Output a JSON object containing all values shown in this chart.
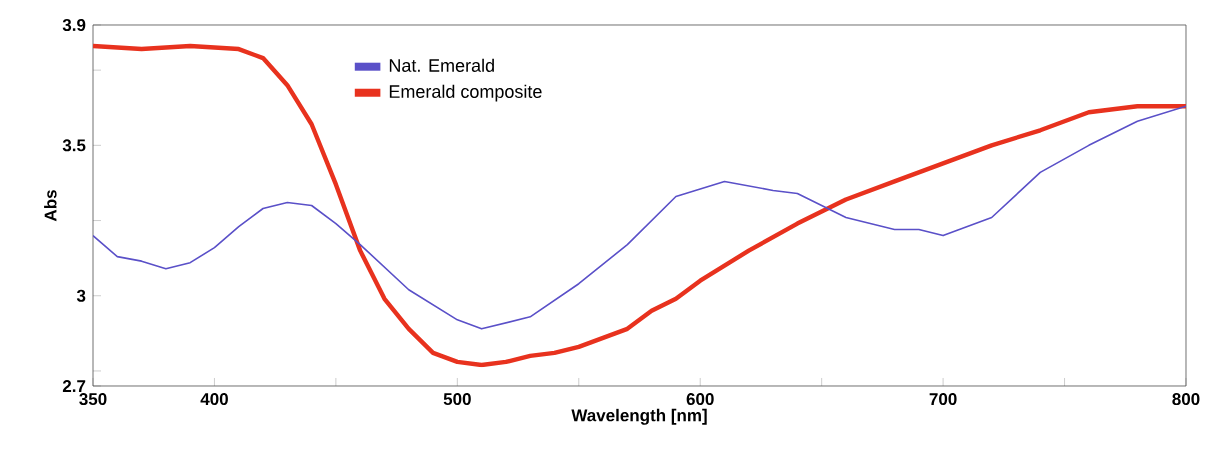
{
  "chart_data": {
    "type": "line",
    "xlabel": "Wavelength [nm]",
    "ylabel": "Abs",
    "xlim": [
      350,
      800
    ],
    "ylim": [
      2.7,
      3.9
    ],
    "xticks": [
      350,
      400,
      {
        "value": 450,
        "label": null
      },
      500,
      {
        "value": 550,
        "label": null
      },
      600,
      {
        "value": 650,
        "label": null
      },
      700,
      {
        "value": 750,
        "label": null
      },
      800
    ],
    "yticks": [
      2.7,
      {
        "value": 2.75,
        "label": null
      },
      3,
      {
        "value": 3.25,
        "label": null
      },
      3.5,
      {
        "value": 3.75,
        "label": null
      },
      3.9
    ],
    "legend": "top",
    "grid": false,
    "marker": "none",
    "line_style": "solid",
    "series": [
      {
        "name": "Nat. Emerald",
        "color": "#5a50c8",
        "x": [
          350,
          360,
          370,
          380,
          390,
          400,
          410,
          420,
          430,
          440,
          450,
          460,
          480,
          500,
          510,
          530,
          550,
          570,
          590,
          610,
          630,
          640,
          660,
          680,
          690,
          700,
          720,
          740,
          760,
          780,
          800
        ],
        "values": [
          3.2,
          3.13,
          3.115,
          3.09,
          3.11,
          3.16,
          3.23,
          3.29,
          3.31,
          3.3,
          3.24,
          3.17,
          3.02,
          2.92,
          2.89,
          2.93,
          3.04,
          3.17,
          3.33,
          3.38,
          3.35,
          3.34,
          3.26,
          3.22,
          3.22,
          3.2,
          3.26,
          3.41,
          3.5,
          3.58,
          3.63
        ]
      },
      {
        "name": "Emerald composite",
        "color": "#e8321e",
        "x": [
          350,
          370,
          390,
          410,
          420,
          430,
          440,
          450,
          460,
          470,
          480,
          490,
          500,
          510,
          520,
          530,
          540,
          550,
          560,
          570,
          580,
          590,
          600,
          620,
          640,
          660,
          680,
          700,
          720,
          740,
          760,
          770,
          780,
          800
        ],
        "values": [
          3.83,
          3.82,
          3.83,
          3.82,
          3.79,
          3.7,
          3.57,
          3.37,
          3.15,
          2.99,
          2.89,
          2.81,
          2.78,
          2.77,
          2.78,
          2.8,
          2.81,
          2.83,
          2.86,
          2.89,
          2.95,
          2.99,
          3.05,
          3.15,
          3.24,
          3.32,
          3.38,
          3.44,
          3.5,
          3.55,
          3.61,
          3.62,
          3.63,
          3.63
        ]
      }
    ]
  }
}
